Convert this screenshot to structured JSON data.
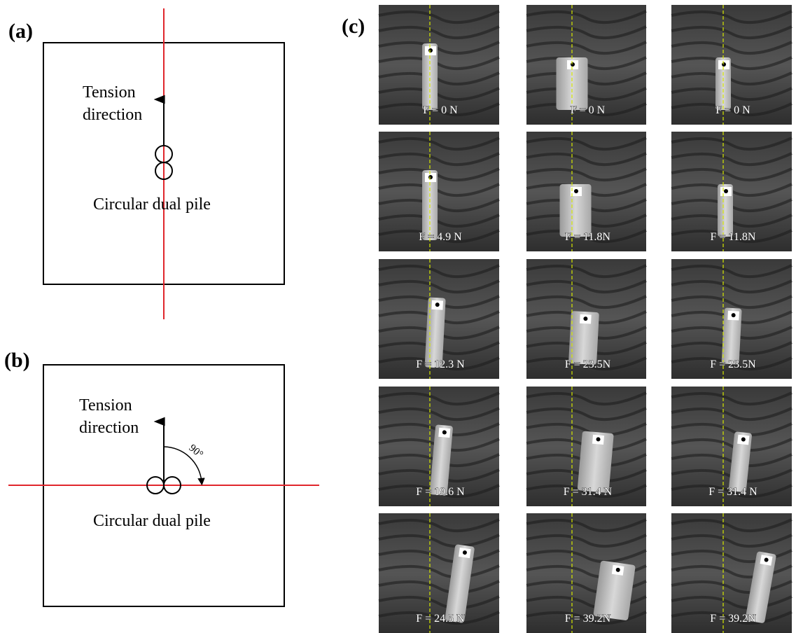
{
  "panel_a": {
    "label": "(a)",
    "tension": "Tension",
    "direction": "direction",
    "pile": "Circular dual pile"
  },
  "panel_b": {
    "label": "(b)",
    "tension": "Tension",
    "direction": "direction",
    "pile": "Circular dual pile",
    "angle": "90°"
  },
  "panel_c": {
    "label": "(c)",
    "rows": [
      [
        "F = 0 N",
        "F = 0 N",
        "F = 0 N"
      ],
      [
        "F = 4.9 N",
        "F = 11.8N",
        "F = 11.8N"
      ],
      [
        "F = 12.3 N",
        "F = 23.5N",
        "F = 23.5N"
      ],
      [
        "F = 19.6 N",
        "F = 31.4 N",
        "F = 31.4 N"
      ],
      [
        "F = 24.5 N",
        "F = 39.2N",
        "F = 39.2N"
      ]
    ]
  }
}
